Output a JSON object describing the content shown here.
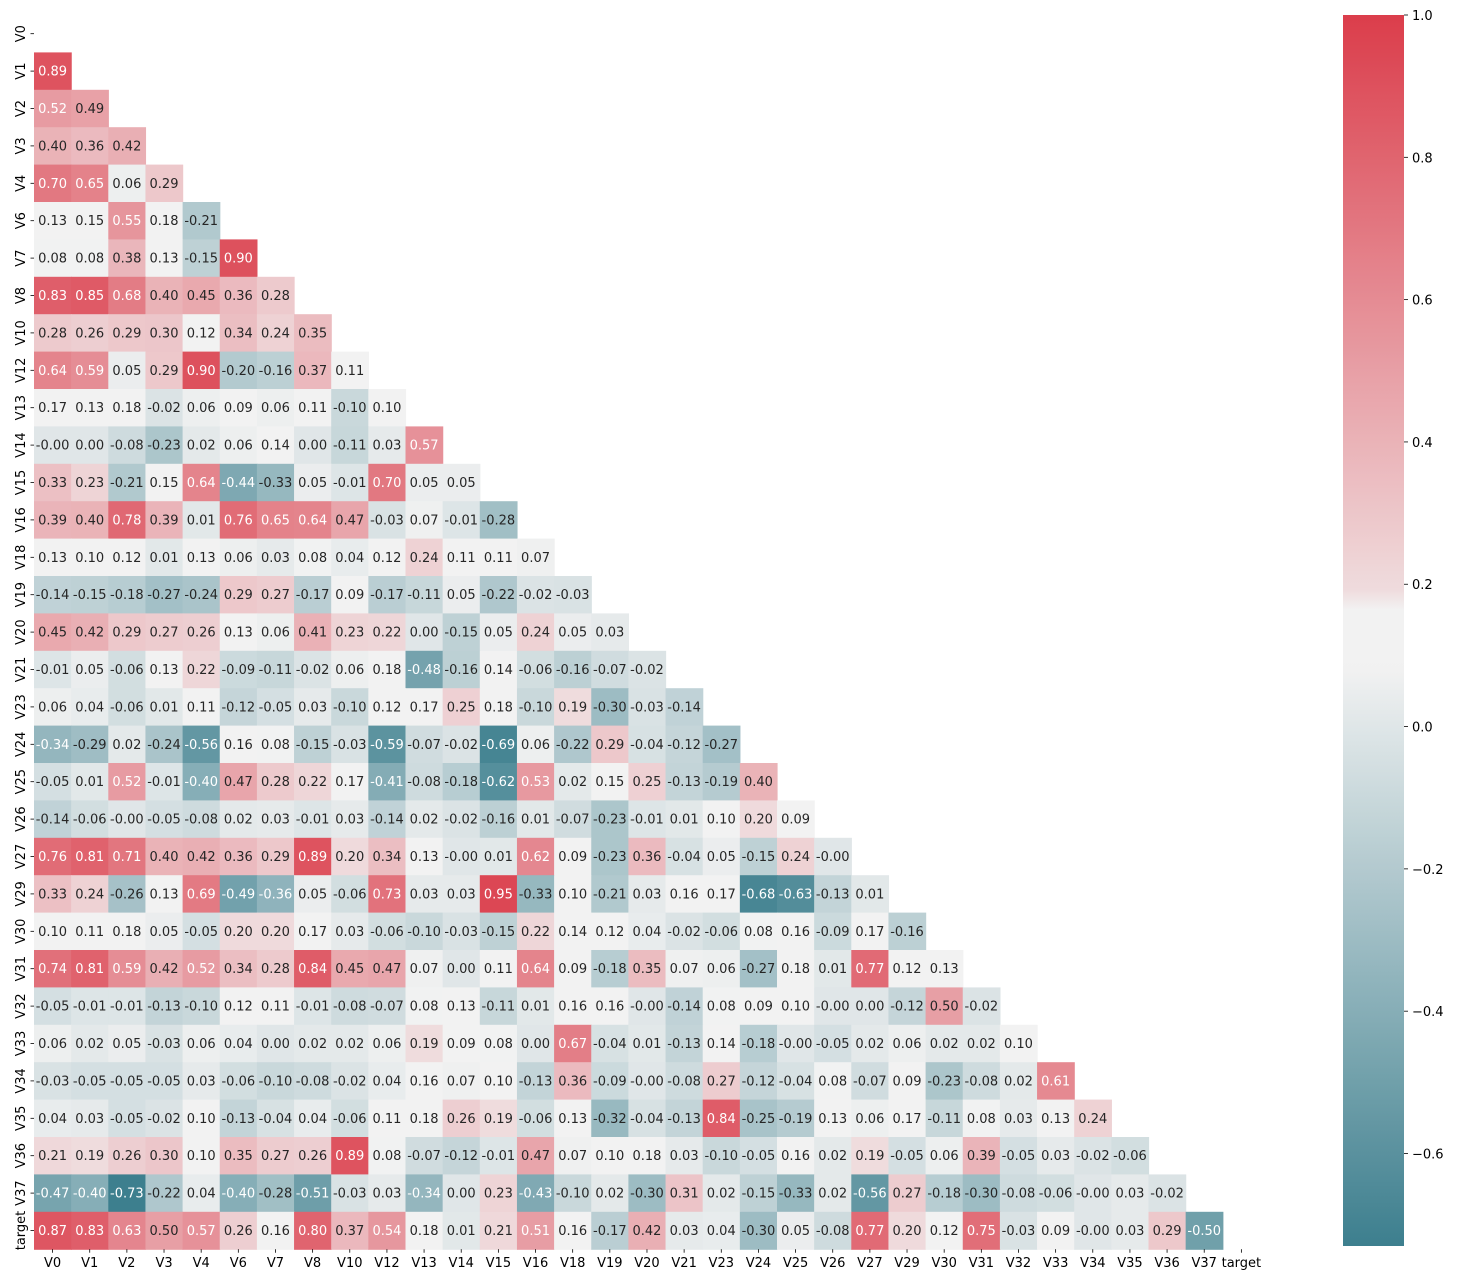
{
  "chart_data": {
    "type": "heatmap",
    "title": "",
    "variables": [
      "V0",
      "V1",
      "V2",
      "V3",
      "V4",
      "V6",
      "V7",
      "V8",
      "V10",
      "V12",
      "V13",
      "V14",
      "V15",
      "V16",
      "V18",
      "V19",
      "V20",
      "V21",
      "V23",
      "V24",
      "V25",
      "V26",
      "V27",
      "V29",
      "V30",
      "V31",
      "V32",
      "V33",
      "V34",
      "V35",
      "V36",
      "V37",
      "target"
    ],
    "mask": "upper-triangle-including-diagonal",
    "annotation_format": "0.00",
    "lower_triangle_rows": [
      [],
      [
        0.89
      ],
      [
        0.52,
        0.49
      ],
      [
        0.4,
        0.36,
        0.42
      ],
      [
        0.7,
        0.65,
        0.06,
        0.29
      ],
      [
        0.13,
        0.15,
        0.55,
        0.18,
        -0.21
      ],
      [
        0.08,
        0.08,
        0.38,
        0.13,
        -0.15,
        0.9
      ],
      [
        0.83,
        0.85,
        0.68,
        0.4,
        0.45,
        0.36,
        0.28
      ],
      [
        0.28,
        0.26,
        0.29,
        0.3,
        0.12,
        0.34,
        0.24,
        0.35
      ],
      [
        0.64,
        0.59,
        0.05,
        0.29,
        0.9,
        -0.2,
        -0.16,
        0.37,
        0.11
      ],
      [
        0.17,
        0.13,
        0.18,
        -0.02,
        0.06,
        0.09,
        0.06,
        0.11,
        -0.1,
        0.1
      ],
      [
        -0.0,
        0.0,
        -0.08,
        -0.23,
        0.02,
        0.06,
        0.14,
        0.0,
        -0.11,
        0.03,
        0.57
      ],
      [
        0.33,
        0.23,
        -0.21,
        0.15,
        0.64,
        -0.44,
        -0.33,
        0.05,
        -0.01,
        0.7,
        0.05,
        0.05
      ],
      [
        0.39,
        0.4,
        0.78,
        0.39,
        0.01,
        0.76,
        0.65,
        0.64,
        0.47,
        -0.03,
        0.07,
        -0.01,
        -0.28
      ],
      [
        0.13,
        0.1,
        0.12,
        0.01,
        0.13,
        0.06,
        0.03,
        0.08,
        0.04,
        0.12,
        0.24,
        0.11,
        0.11,
        0.07
      ],
      [
        -0.14,
        -0.15,
        -0.18,
        -0.27,
        -0.24,
        0.29,
        0.27,
        -0.17,
        0.09,
        -0.17,
        -0.11,
        0.05,
        -0.22,
        -0.02,
        -0.03
      ],
      [
        0.45,
        0.42,
        0.29,
        0.27,
        0.26,
        0.13,
        0.06,
        0.41,
        0.23,
        0.22,
        0.0,
        -0.15,
        0.05,
        0.24,
        0.05,
        0.03
      ],
      [
        -0.01,
        0.05,
        -0.06,
        0.13,
        0.22,
        -0.09,
        -0.11,
        -0.02,
        0.06,
        0.18,
        -0.48,
        -0.16,
        0.14,
        -0.06,
        -0.16,
        -0.07,
        -0.02
      ],
      [
        0.06,
        0.04,
        -0.06,
        0.01,
        0.11,
        -0.12,
        -0.05,
        0.03,
        -0.1,
        0.12,
        0.17,
        0.25,
        0.18,
        -0.1,
        0.19,
        -0.3,
        -0.03,
        -0.14
      ],
      [
        -0.34,
        -0.29,
        0.02,
        -0.24,
        -0.56,
        0.16,
        0.08,
        -0.15,
        -0.03,
        -0.59,
        -0.07,
        -0.02,
        -0.69,
        0.06,
        -0.22,
        0.29,
        -0.04,
        -0.12,
        -0.27
      ],
      [
        -0.05,
        0.01,
        0.52,
        -0.01,
        -0.4,
        0.47,
        0.28,
        0.22,
        0.17,
        -0.41,
        -0.08,
        -0.18,
        -0.62,
        0.53,
        0.02,
        0.15,
        0.25,
        -0.13,
        -0.19,
        0.4
      ],
      [
        -0.14,
        -0.06,
        -0.0,
        -0.05,
        -0.08,
        0.02,
        0.03,
        -0.01,
        0.03,
        -0.14,
        0.02,
        -0.02,
        -0.16,
        0.01,
        -0.07,
        -0.23,
        -0.01,
        0.01,
        0.1,
        0.2,
        0.09
      ],
      [
        0.76,
        0.81,
        0.71,
        0.4,
        0.42,
        0.36,
        0.29,
        0.89,
        0.2,
        0.34,
        0.13,
        -0.0,
        0.01,
        0.62,
        0.09,
        -0.23,
        0.36,
        -0.04,
        0.05,
        -0.15,
        0.24,
        -0.0
      ],
      [
        0.33,
        0.24,
        -0.26,
        0.13,
        0.69,
        -0.49,
        -0.36,
        0.05,
        -0.06,
        0.73,
        0.03,
        0.03,
        0.95,
        -0.33,
        0.1,
        -0.21,
        0.03,
        0.16,
        0.17,
        -0.68,
        -0.63,
        -0.13,
        0.01
      ],
      [
        0.1,
        0.11,
        0.18,
        0.05,
        -0.05,
        0.2,
        0.2,
        0.17,
        0.03,
        -0.06,
        -0.1,
        -0.03,
        -0.15,
        0.22,
        0.14,
        0.12,
        0.04,
        -0.02,
        -0.06,
        0.08,
        0.16,
        -0.09,
        0.17,
        -0.16
      ],
      [
        0.74,
        0.81,
        0.59,
        0.42,
        0.52,
        0.34,
        0.28,
        0.84,
        0.45,
        0.47,
        0.07,
        0.0,
        0.11,
        0.64,
        0.09,
        -0.18,
        0.35,
        0.07,
        0.06,
        -0.27,
        0.18,
        0.01,
        0.77,
        0.12,
        0.13
      ],
      [
        -0.05,
        -0.01,
        -0.01,
        -0.13,
        -0.1,
        0.12,
        0.11,
        -0.01,
        -0.08,
        -0.07,
        0.08,
        0.13,
        -0.11,
        0.01,
        0.16,
        0.16,
        -0.0,
        -0.14,
        0.08,
        0.09,
        0.1,
        -0.0,
        0.0,
        -0.12,
        0.5,
        -0.02
      ],
      [
        0.06,
        0.02,
        0.05,
        -0.03,
        0.06,
        0.04,
        0.0,
        0.02,
        0.02,
        0.06,
        0.19,
        0.09,
        0.08,
        0.0,
        0.67,
        -0.04,
        0.01,
        -0.13,
        0.14,
        -0.18,
        -0.0,
        -0.05,
        0.02,
        0.06,
        0.02,
        0.02,
        0.1
      ],
      [
        -0.03,
        -0.05,
        -0.05,
        -0.05,
        0.03,
        -0.06,
        -0.1,
        -0.08,
        -0.02,
        0.04,
        0.16,
        0.07,
        0.1,
        -0.13,
        0.36,
        -0.09,
        -0.0,
        -0.08,
        0.27,
        -0.12,
        -0.04,
        0.08,
        -0.07,
        0.09,
        -0.23,
        -0.08,
        0.02,
        0.61
      ],
      [
        0.04,
        0.03,
        -0.05,
        -0.02,
        0.1,
        -0.13,
        -0.04,
        0.04,
        -0.06,
        0.11,
        0.18,
        0.26,
        0.19,
        -0.06,
        0.13,
        -0.32,
        -0.04,
        -0.13,
        0.84,
        -0.25,
        -0.19,
        0.13,
        0.06,
        0.17,
        -0.11,
        0.08,
        0.03,
        0.13,
        0.24
      ],
      [
        0.21,
        0.19,
        0.26,
        0.3,
        0.1,
        0.35,
        0.27,
        0.26,
        0.89,
        0.08,
        -0.07,
        -0.12,
        -0.01,
        0.47,
        0.07,
        0.1,
        0.18,
        0.03,
        -0.1,
        -0.05,
        0.16,
        0.02,
        0.19,
        -0.05,
        0.06,
        0.39,
        -0.05,
        0.03,
        -0.02,
        -0.06
      ],
      [
        -0.47,
        -0.4,
        -0.73,
        -0.22,
        0.04,
        -0.4,
        -0.28,
        -0.51,
        -0.03,
        0.03,
        -0.34,
        0.0,
        0.23,
        -0.43,
        -0.1,
        0.02,
        -0.3,
        0.31,
        0.02,
        -0.15,
        -0.33,
        0.02,
        -0.56,
        0.27,
        -0.18,
        -0.3,
        -0.08,
        -0.06,
        -0.0,
        0.03,
        -0.02
      ],
      [
        0.87,
        0.83,
        0.63,
        0.5,
        0.57,
        0.26,
        0.16,
        0.8,
        0.37,
        0.54,
        0.18,
        0.01,
        0.21,
        0.51,
        0.16,
        -0.17,
        0.42,
        0.03,
        0.04,
        -0.3,
        0.05,
        -0.08,
        0.77,
        0.2,
        0.12,
        0.75,
        -0.03,
        0.09,
        -0.0,
        0.03,
        0.29,
        -0.5
      ]
    ],
    "colorbar": {
      "vmin": -0.73,
      "vmax": 1.0,
      "ticks": [
        -0.6,
        -0.4,
        -0.2,
        0.0,
        0.2,
        0.4,
        0.6,
        0.8,
        1.0
      ],
      "tick_labels": [
        "−0.6",
        "−0.4",
        "−0.2",
        "0.0",
        "0.2",
        "0.4",
        "0.6",
        "0.8",
        "1.0"
      ]
    },
    "colormap": {
      "name": "diverging",
      "negative_color": "#3d7f8e",
      "center_color": "#f2f2f2",
      "positive_color": "#db3d4b"
    },
    "text_color_dark": "#262626",
    "text_color_light": "#ffffff"
  }
}
